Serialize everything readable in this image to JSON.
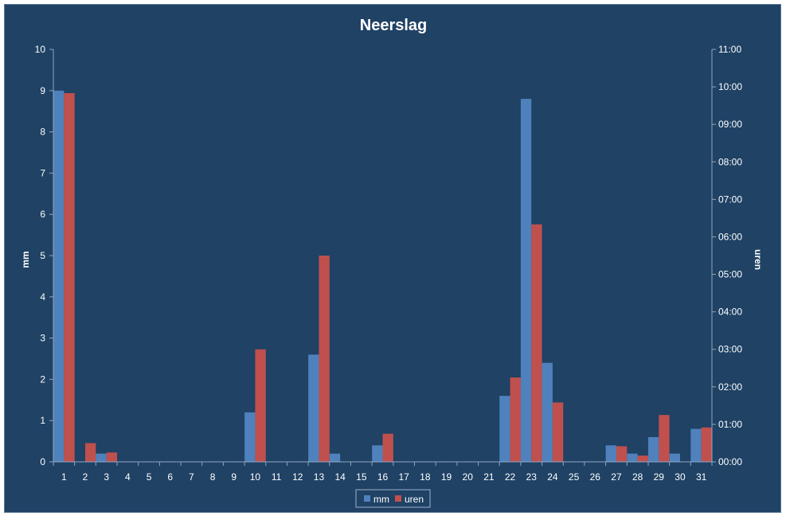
{
  "chart_data": {
    "type": "bar",
    "title": "Neerslag",
    "ylabel_left": "mm",
    "ylabel_right": "uren",
    "ylim_left": [
      0,
      10
    ],
    "y_ticks_left": [
      "0",
      "1",
      "2",
      "3",
      "4",
      "5",
      "6",
      "7",
      "8",
      "9",
      "10"
    ],
    "ylim_right_minutes": [
      0,
      660
    ],
    "y_ticks_right": [
      "00:00",
      "01:00",
      "02:00",
      "03:00",
      "04:00",
      "05:00",
      "06:00",
      "07:00",
      "08:00",
      "09:00",
      "10:00",
      "11:00"
    ],
    "categories": [
      "1",
      "2",
      "3",
      "4",
      "5",
      "6",
      "7",
      "8",
      "9",
      "10",
      "11",
      "12",
      "13",
      "14",
      "15",
      "16",
      "17",
      "18",
      "19",
      "20",
      "21",
      "22",
      "23",
      "24",
      "25",
      "26",
      "27",
      "28",
      "29",
      "30",
      "31"
    ],
    "series": [
      {
        "name": "mm",
        "axis": "left",
        "color": "#4f81bd",
        "values": [
          9.0,
          0,
          0.2,
          0,
          0,
          0,
          0,
          0,
          0,
          1.2,
          0,
          0,
          2.6,
          0.2,
          0,
          0.4,
          0,
          0,
          0,
          0,
          0,
          1.6,
          8.8,
          2.4,
          0,
          0,
          0.4,
          0.2,
          0.6,
          0.2,
          0.8
        ]
      },
      {
        "name": "uren",
        "axis": "right",
        "color": "#c0504d",
        "values_minutes": [
          590,
          30,
          15,
          0,
          0,
          0,
          0,
          0,
          0,
          180,
          0,
          0,
          330,
          0,
          0,
          45,
          0,
          0,
          0,
          0,
          0,
          135,
          380,
          95,
          0,
          0,
          25,
          10,
          75,
          0,
          55
        ]
      }
    ],
    "legend": {
      "position": "bottom",
      "items": [
        "mm",
        "uren"
      ]
    },
    "grid": false
  }
}
